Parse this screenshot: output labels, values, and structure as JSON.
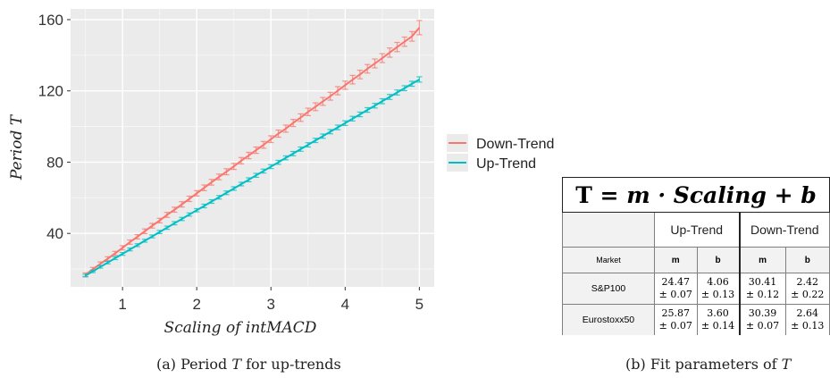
{
  "chart_data": {
    "type": "line",
    "title": "",
    "xlabel": "Scaling of intMACD",
    "ylabel": "Period T",
    "xlim": [
      0.3,
      5.2
    ],
    "ylim": [
      10,
      166
    ],
    "x_ticks": [
      1,
      2,
      3,
      4,
      5
    ],
    "y_ticks": [
      40,
      80,
      120,
      160
    ],
    "grid": true,
    "legend_position": "right",
    "series": [
      {
        "name": "Down-Trend",
        "color": "#f8766d",
        "fit": {
          "slope": 30.41,
          "intercept": 2.42
        },
        "x": [
          0.5,
          0.6,
          0.7,
          0.8,
          0.9,
          1.0,
          1.1,
          1.2,
          1.3,
          1.4,
          1.5,
          1.6,
          1.7,
          1.8,
          1.9,
          2.0,
          2.1,
          2.2,
          2.3,
          2.4,
          2.5,
          2.6,
          2.7,
          2.8,
          2.9,
          3.0,
          3.1,
          3.2,
          3.3,
          3.4,
          3.5,
          3.6,
          3.7,
          3.8,
          3.9,
          4.0,
          4.1,
          4.2,
          4.3,
          4.4,
          4.5,
          4.6,
          4.7,
          4.8,
          4.9,
          5.0
        ],
        "y": [
          16.8,
          19.9,
          22.9,
          25.8,
          28.8,
          31.9,
          35.1,
          38.1,
          41.2,
          44.3,
          47.2,
          50.4,
          53.3,
          56.3,
          59.4,
          62.5,
          65.6,
          68.7,
          71.7,
          74.6,
          77.6,
          80.8,
          83.7,
          86.7,
          89.7,
          92.9,
          96.0,
          98.8,
          102.0,
          105.0,
          108.2,
          111.1,
          114.1,
          117.0,
          120.1,
          123.2,
          126.3,
          129.2,
          132.4,
          135.4,
          138.4,
          141.5,
          144.6,
          147.6,
          150.6,
          155.5
        ],
        "err": [
          1.0,
          1.0,
          1.1,
          1.1,
          1.1,
          1.2,
          1.2,
          1.2,
          1.3,
          1.3,
          1.3,
          1.4,
          1.4,
          1.5,
          1.5,
          1.5,
          1.6,
          1.6,
          1.6,
          1.7,
          1.7,
          1.8,
          1.8,
          1.8,
          1.9,
          1.9,
          2.0,
          2.0,
          2.0,
          2.1,
          2.1,
          2.2,
          2.2,
          2.2,
          2.3,
          2.3,
          2.4,
          2.4,
          2.4,
          2.5,
          2.5,
          2.6,
          2.6,
          2.6,
          2.7,
          4.0
        ]
      },
      {
        "name": "Up-Trend",
        "color": "#00bfc4",
        "fit": {
          "slope": 24.47,
          "intercept": 4.06
        },
        "x": [
          0.5,
          0.6,
          0.7,
          0.8,
          0.9,
          1.0,
          1.1,
          1.2,
          1.3,
          1.4,
          1.5,
          1.6,
          1.7,
          1.8,
          1.9,
          2.0,
          2.1,
          2.2,
          2.3,
          2.4,
          2.5,
          2.6,
          2.7,
          2.8,
          2.9,
          3.0,
          3.1,
          3.2,
          3.3,
          3.4,
          3.5,
          3.6,
          3.7,
          3.8,
          3.9,
          4.0,
          4.1,
          4.2,
          4.3,
          4.4,
          4.5,
          4.6,
          4.7,
          4.8,
          4.9,
          5.0
        ],
        "y": [
          16.3,
          18.7,
          21.2,
          23.6,
          26.1,
          28.5,
          31.0,
          33.4,
          35.9,
          38.3,
          40.8,
          43.2,
          45.7,
          48.1,
          50.6,
          53.0,
          55.4,
          57.9,
          60.3,
          62.8,
          65.2,
          67.7,
          70.1,
          72.6,
          75.0,
          77.5,
          79.9,
          82.4,
          84.8,
          87.3,
          89.7,
          92.2,
          94.6,
          97.1,
          99.5,
          101.9,
          104.4,
          106.8,
          109.3,
          111.7,
          114.2,
          116.6,
          119.1,
          121.5,
          124.0,
          126.4
        ],
        "err": [
          0.7,
          0.7,
          0.7,
          0.7,
          0.8,
          0.8,
          0.8,
          0.8,
          0.8,
          0.8,
          0.9,
          0.9,
          0.9,
          0.9,
          0.9,
          0.9,
          1.0,
          1.0,
          1.0,
          1.0,
          1.0,
          1.0,
          1.1,
          1.1,
          1.1,
          1.1,
          1.1,
          1.1,
          1.2,
          1.2,
          1.2,
          1.2,
          1.2,
          1.2,
          1.3,
          1.3,
          1.3,
          1.3,
          1.3,
          1.3,
          1.4,
          1.4,
          1.4,
          1.4,
          1.4,
          1.5
        ]
      }
    ]
  },
  "captions": {
    "left_prefix": "(a)  Period ",
    "left_var": "T",
    "left_suffix": " for up-trends",
    "right_prefix": "(b)  Fit parameters of ",
    "right_var": "T"
  },
  "fit_table": {
    "formula_a": "T = ",
    "formula_b": "m · Scaling + b",
    "groups": [
      "Up-Trend",
      "Down-Trend"
    ],
    "headers": [
      "Market",
      "m",
      "b",
      "m",
      "b"
    ],
    "rows": [
      {
        "market": "S&P100",
        "up_m": "24.47",
        "up_m_err": "± 0.07",
        "up_b": "4.06",
        "up_b_err": "± 0.13",
        "down_m": "30.41",
        "down_m_err": "± 0.12",
        "down_b": "2.42",
        "down_b_err": "± 0.22"
      },
      {
        "market": "Eurostoxx50",
        "up_m": "25.87",
        "up_m_err": "± 0.07",
        "up_b": "3.60",
        "up_b_err": "± 0.14",
        "down_m": "30.39",
        "down_m_err": "± 0.07",
        "down_b": "2.64",
        "down_b_err": "± 0.13"
      }
    ]
  },
  "colors": {
    "panel_bg": "#ebebeb",
    "grid": "#ffffff",
    "header_fill": "#f2f2f2"
  }
}
